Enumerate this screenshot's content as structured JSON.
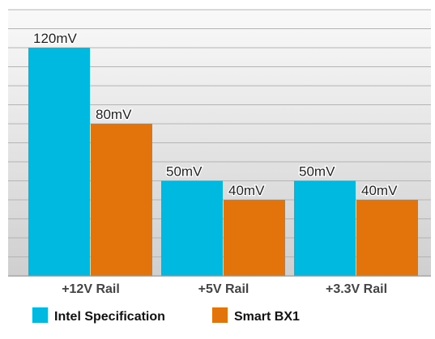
{
  "chart_data": {
    "type": "bar",
    "categories": [
      "+12V Rail",
      "+5V Rail",
      "+3.3V Rail"
    ],
    "series": [
      {
        "name": "Intel Specification",
        "values": [
          120,
          50,
          50
        ],
        "labels": [
          "120mV",
          "50mV",
          "50mV"
        ],
        "color": "#00b9e1"
      },
      {
        "name": "Smart BX1",
        "values": [
          80,
          40,
          40
        ],
        "labels": [
          "80mV",
          "40mV",
          "40mV"
        ],
        "color": "#e2740b"
      }
    ],
    "title": "",
    "xlabel": "",
    "ylabel": "",
    "ylim": [
      0,
      140
    ],
    "grid": true,
    "legend_position": "bottom",
    "background": "#e8e8e8"
  }
}
